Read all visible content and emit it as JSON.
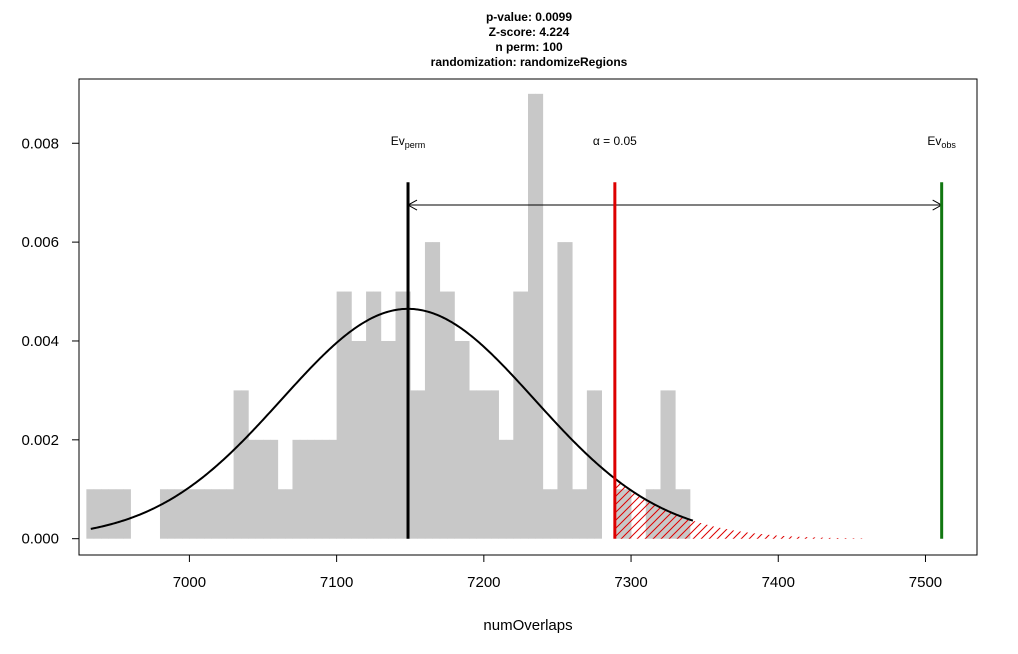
{
  "chart_data": {
    "type": "bar",
    "title_lines": [
      "p-value:  0.0099",
      "Z-score:  4.224",
      "n perm:  100",
      "randomization:  randomizeRegions"
    ],
    "xlabel": "numOverlaps",
    "ylabel": "",
    "xlim": [
      6925,
      7535
    ],
    "ylim": [
      -0.00033,
      0.0093
    ],
    "x_ticks": [
      7000,
      7100,
      7200,
      7300,
      7400,
      7500
    ],
    "y_ticks": [
      0.0,
      0.002,
      0.004,
      0.006,
      0.008
    ],
    "y_tick_labels": [
      "0.000",
      "0.002",
      "0.004",
      "0.006",
      "0.008"
    ],
    "histogram": {
      "bin_width": 5,
      "color": "#c8c8c8",
      "bins_start": [
        6930,
        6935,
        6940,
        6945,
        6950,
        6955,
        6960,
        6965,
        6970,
        6975,
        6980,
        6985,
        6990,
        6995,
        7000,
        7005,
        7010,
        7015,
        7020,
        7025,
        7030,
        7035,
        7040,
        7045,
        7050,
        7055,
        7060,
        7065,
        7070,
        7075,
        7080,
        7085,
        7090,
        7095,
        7100,
        7105,
        7110,
        7115,
        7120,
        7125,
        7130,
        7135,
        7140,
        7145,
        7150,
        7155,
        7160,
        7165,
        7170,
        7175,
        7180,
        7185,
        7190,
        7195,
        7200,
        7205,
        7210,
        7215,
        7220,
        7225,
        7230,
        7235,
        7240,
        7245,
        7250,
        7255,
        7260,
        7265,
        7270,
        7275,
        7280,
        7285,
        7290,
        7295,
        7300,
        7305,
        7310,
        7315,
        7320,
        7325,
        7330,
        7335,
        7340,
        7345
      ],
      "density": [
        0.001,
        0.001,
        0.001,
        0.001,
        0.001,
        0.001,
        0,
        0,
        0,
        0,
        0.001,
        0.001,
        0.001,
        0.001,
        0.001,
        0.001,
        0.001,
        0.001,
        0.001,
        0.001,
        0.003,
        0.003,
        0.002,
        0.002,
        0.002,
        0.002,
        0.001,
        0.001,
        0.002,
        0.002,
        0.002,
        0.002,
        0.002,
        0.002,
        0.005,
        0.005,
        0.004,
        0.004,
        0.005,
        0.005,
        0.004,
        0.004,
        0.005,
        0.005,
        0.003,
        0.003,
        0.006,
        0.006,
        0.005,
        0.005,
        0.004,
        0.004,
        0.003,
        0.003,
        0.003,
        0.003,
        0.002,
        0.002,
        0.005,
        0.005,
        0.009,
        0.009,
        0.001,
        0.001,
        0.006,
        0.006,
        0.001,
        0.001,
        0.003,
        0.003,
        0,
        0,
        0.001,
        0.001,
        0,
        0,
        0.001,
        0.001,
        0.003,
        0.003,
        0.001,
        0.001,
        0,
        0
      ]
    },
    "curve": {
      "type": "normal",
      "mean": 7148.5,
      "sd": 85.8,
      "x_range": [
        6933,
        7342
      ],
      "color": "#000000"
    },
    "vlines": [
      {
        "label_main": "Ev",
        "label_sub": "perm",
        "x": 7148.5,
        "y_top": 0.00721,
        "color": "#000000"
      },
      {
        "label_main": "α = 0.05",
        "label_sub": "",
        "x": 7289,
        "y_top": 0.00721,
        "color": "#dd0000"
      },
      {
        "label_main": "Ev",
        "label_sub": "obs",
        "x": 7511,
        "y_top": 0.00721,
        "color": "#117711"
      }
    ],
    "arrow": {
      "x_from": 7148.5,
      "x_to": 7511,
      "y": 0.00675,
      "color": "#000000"
    },
    "tail_shading": {
      "x_from": 7289,
      "x_to": 7460,
      "color": "#dd0000"
    },
    "grid": false,
    "legend": "none"
  }
}
